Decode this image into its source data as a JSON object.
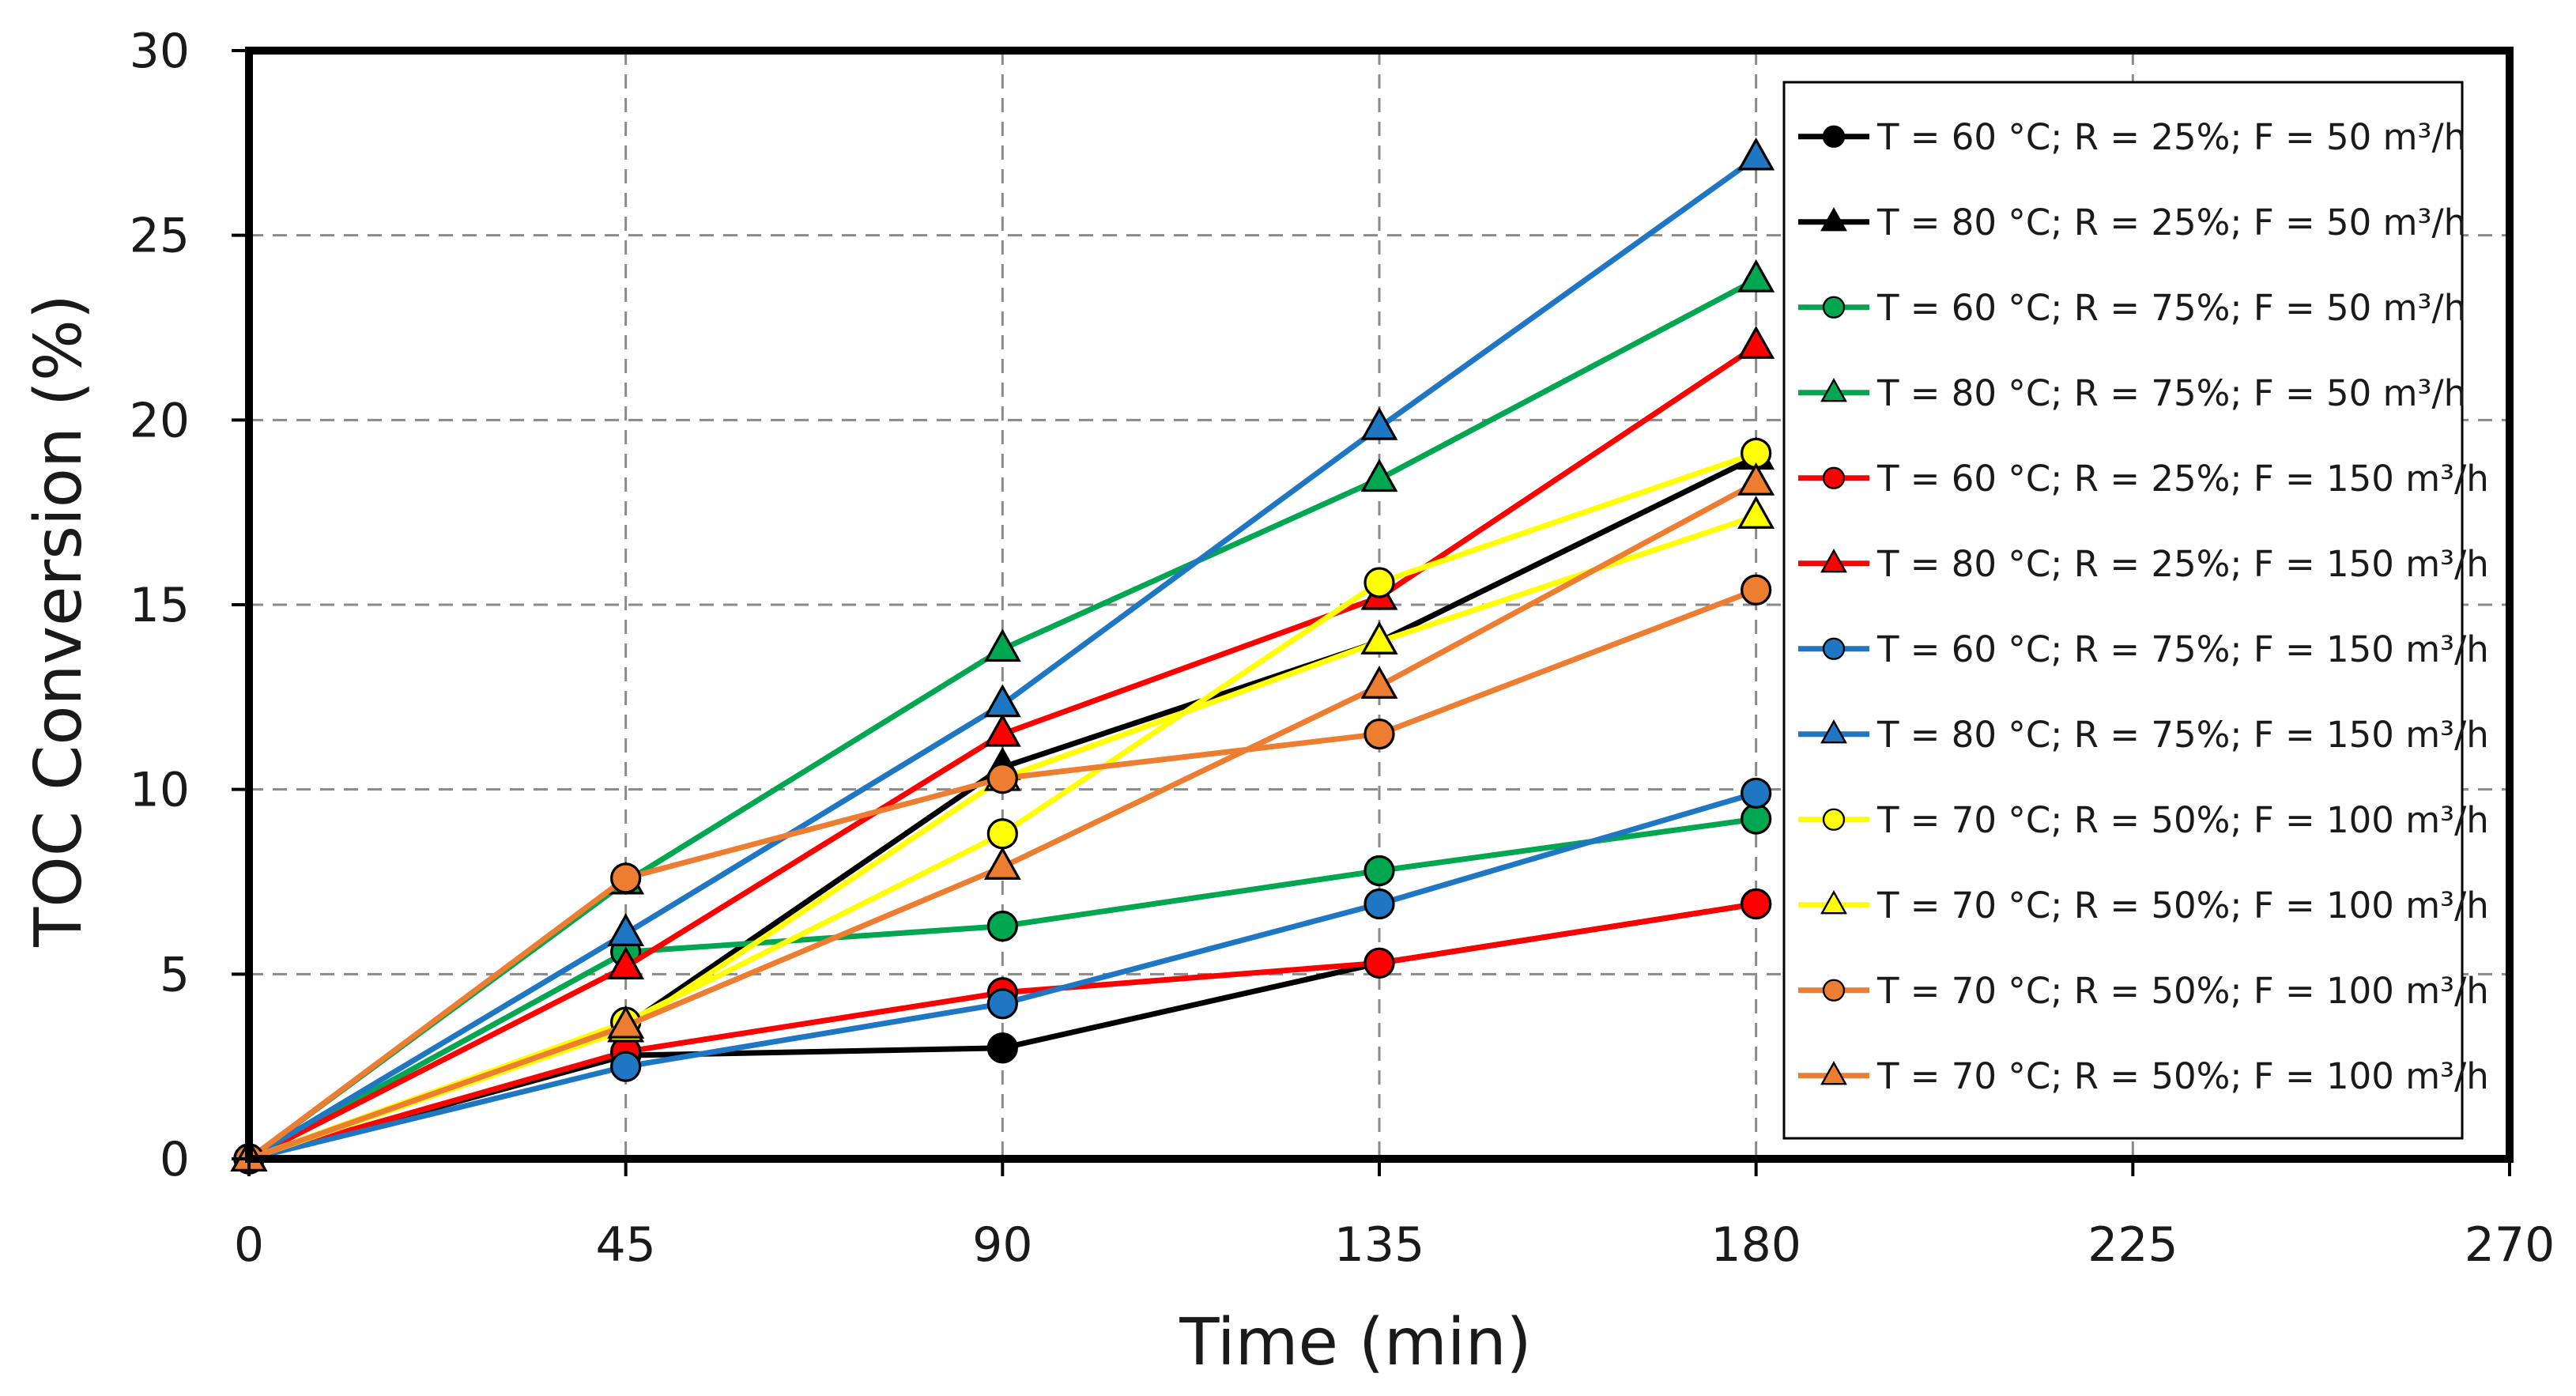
{
  "chart_data": {
    "type": "line",
    "title": "",
    "xlabel": "Time (min)",
    "ylabel": "TOC Conversion (%)",
    "xlim": [
      0,
      270
    ],
    "ylim": [
      0,
      30
    ],
    "xticks": [
      0,
      45,
      90,
      135,
      180,
      225,
      270
    ],
    "yticks": [
      0,
      5,
      10,
      15,
      20,
      25,
      30
    ],
    "grid": "dashed",
    "legend_position": "right",
    "x": [
      0,
      45,
      90,
      135,
      180
    ],
    "series": [
      {
        "name": "T = 60 °C; R = 25%; F = 50 m³/h",
        "color": "#000000",
        "marker": "circle",
        "values": [
          0,
          2.8,
          3.0,
          5.3,
          6.9
        ]
      },
      {
        "name": "T = 80 °C; R = 25%; F = 50 m³/h",
        "color": "#000000",
        "marker": "triangle",
        "values": [
          0,
          3.6,
          10.6,
          14.0,
          19.0
        ]
      },
      {
        "name": "T = 60 °C; R = 75%; F = 50 m³/h",
        "color": "#00a650",
        "marker": "circle",
        "values": [
          0,
          5.6,
          6.3,
          7.8,
          9.2
        ]
      },
      {
        "name": "T = 80 °C; R = 75%; F = 50 m³/h",
        "color": "#00a650",
        "marker": "triangle",
        "values": [
          0,
          7.5,
          13.8,
          18.4,
          23.8
        ]
      },
      {
        "name": "T = 60 °C; R = 25%; F = 150 m³/h",
        "color": "#ff0000",
        "marker": "circle",
        "values": [
          0,
          2.9,
          4.5,
          5.3,
          6.9
        ]
      },
      {
        "name": "T = 80 °C; R = 25%; F = 150 m³/h",
        "color": "#ff0000",
        "marker": "triangle",
        "values": [
          0,
          5.2,
          11.5,
          15.2,
          22.0
        ]
      },
      {
        "name": "T = 60 °C; R = 75%; F = 150 m³/h",
        "color": "#1f77c4",
        "marker": "circle",
        "values": [
          0,
          2.5,
          4.2,
          6.9,
          9.9
        ]
      },
      {
        "name": "T = 80 °C; R = 75%; F = 150 m³/h",
        "color": "#1f77c4",
        "marker": "triangle",
        "values": [
          0,
          6.1,
          12.3,
          19.8,
          27.1
        ]
      },
      {
        "name": "T = 70 °C; R = 50%; F = 100 m³/h",
        "color": "#ffff00",
        "marker": "circle",
        "values": [
          0,
          3.7,
          8.8,
          15.6,
          19.1
        ]
      },
      {
        "name": "T = 70 °C; R = 50%; F = 100 m³/h",
        "color": "#ffff00",
        "marker": "triangle",
        "values": [
          0,
          3.5,
          10.3,
          14.0,
          17.4
        ]
      },
      {
        "name": "T = 70 °C; R = 50%; F = 100 m³/h",
        "color": "#ed7d31",
        "marker": "circle",
        "values": [
          0,
          7.6,
          10.3,
          11.5,
          15.4
        ]
      },
      {
        "name": "T = 70 °C; R = 50%; F = 100 m³/h",
        "color": "#ed7d31",
        "marker": "triangle",
        "values": [
          0,
          3.6,
          7.9,
          12.8,
          18.3
        ]
      }
    ]
  }
}
